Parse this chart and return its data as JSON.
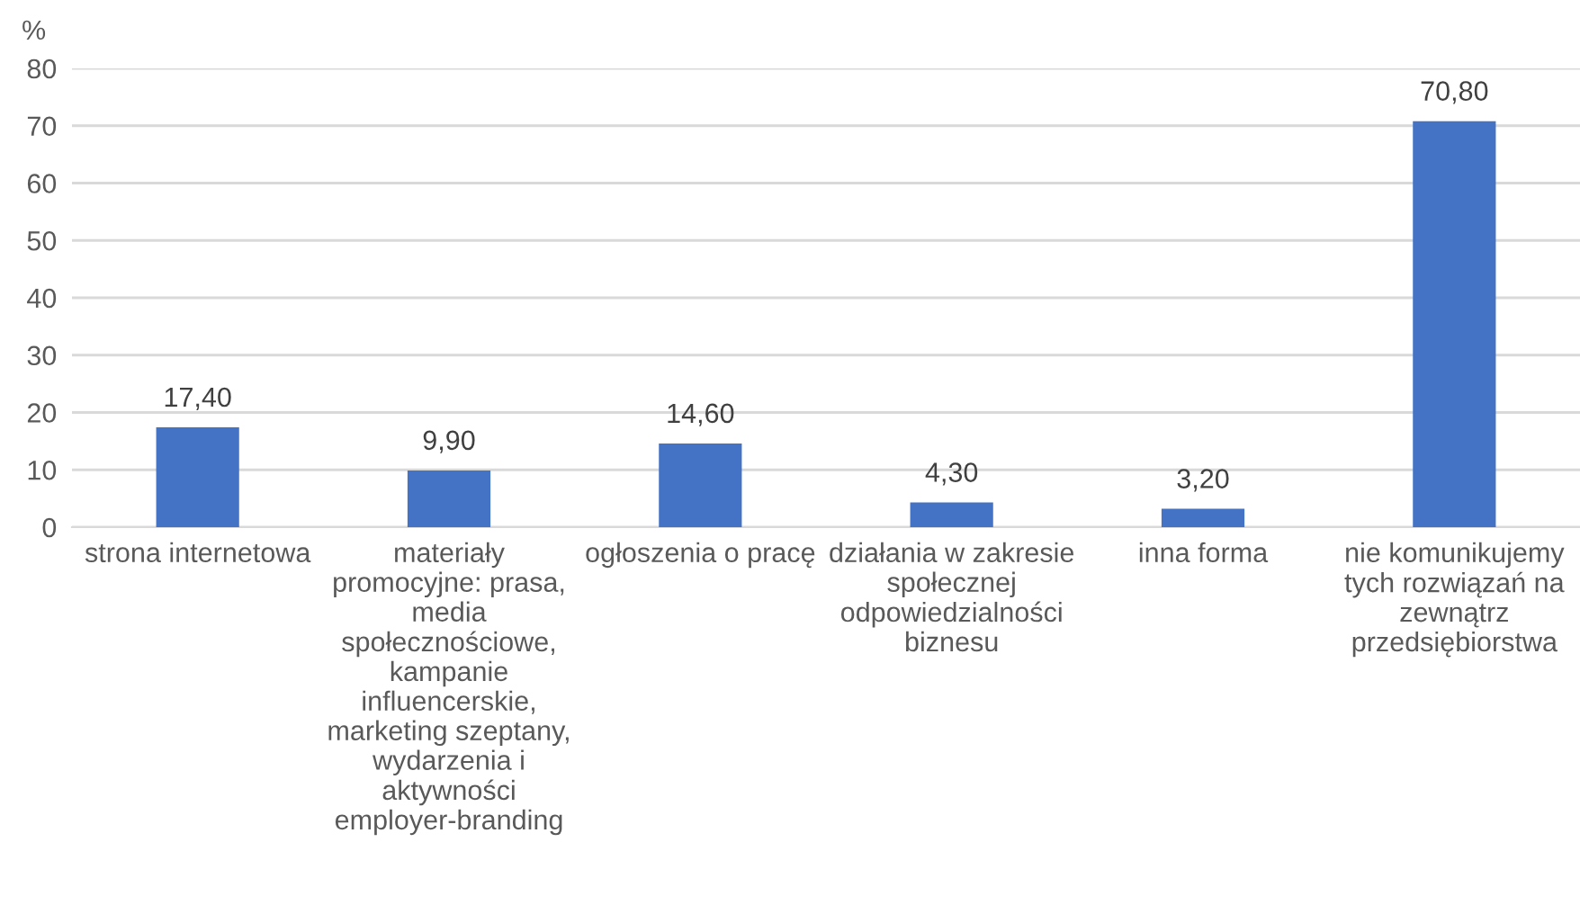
{
  "chart_data": {
    "type": "bar",
    "ylabel": "%",
    "categories": [
      "strona internetowa",
      "materiały\npromocyjne: prasa,\nmedia\nspołecznościowe,\nkampanie\ninfluencerskie,\nmarketing szeptany,\nwydarzenia i\naktywności\nemployer-branding",
      "ogłoszenia o pracę",
      "działania w zakresie\nspołecznej\nodpowiedzialności\nbiznesu",
      "inna forma",
      "nie komunikujemy\ntych rozwiązań na\nzewnątrz\nprzedsiębiorstwa"
    ],
    "values": [
      17.4,
      9.9,
      14.6,
      4.3,
      3.2,
      70.8
    ],
    "value_labels": [
      "17,40",
      "9,90",
      "14,60",
      "4,30",
      "3,20",
      "70,80"
    ],
    "color": "#4472c4",
    "ylim": [
      0,
      80
    ],
    "yticks": [
      0,
      10,
      20,
      30,
      40,
      50,
      60,
      70,
      80
    ],
    "grid": "y"
  }
}
